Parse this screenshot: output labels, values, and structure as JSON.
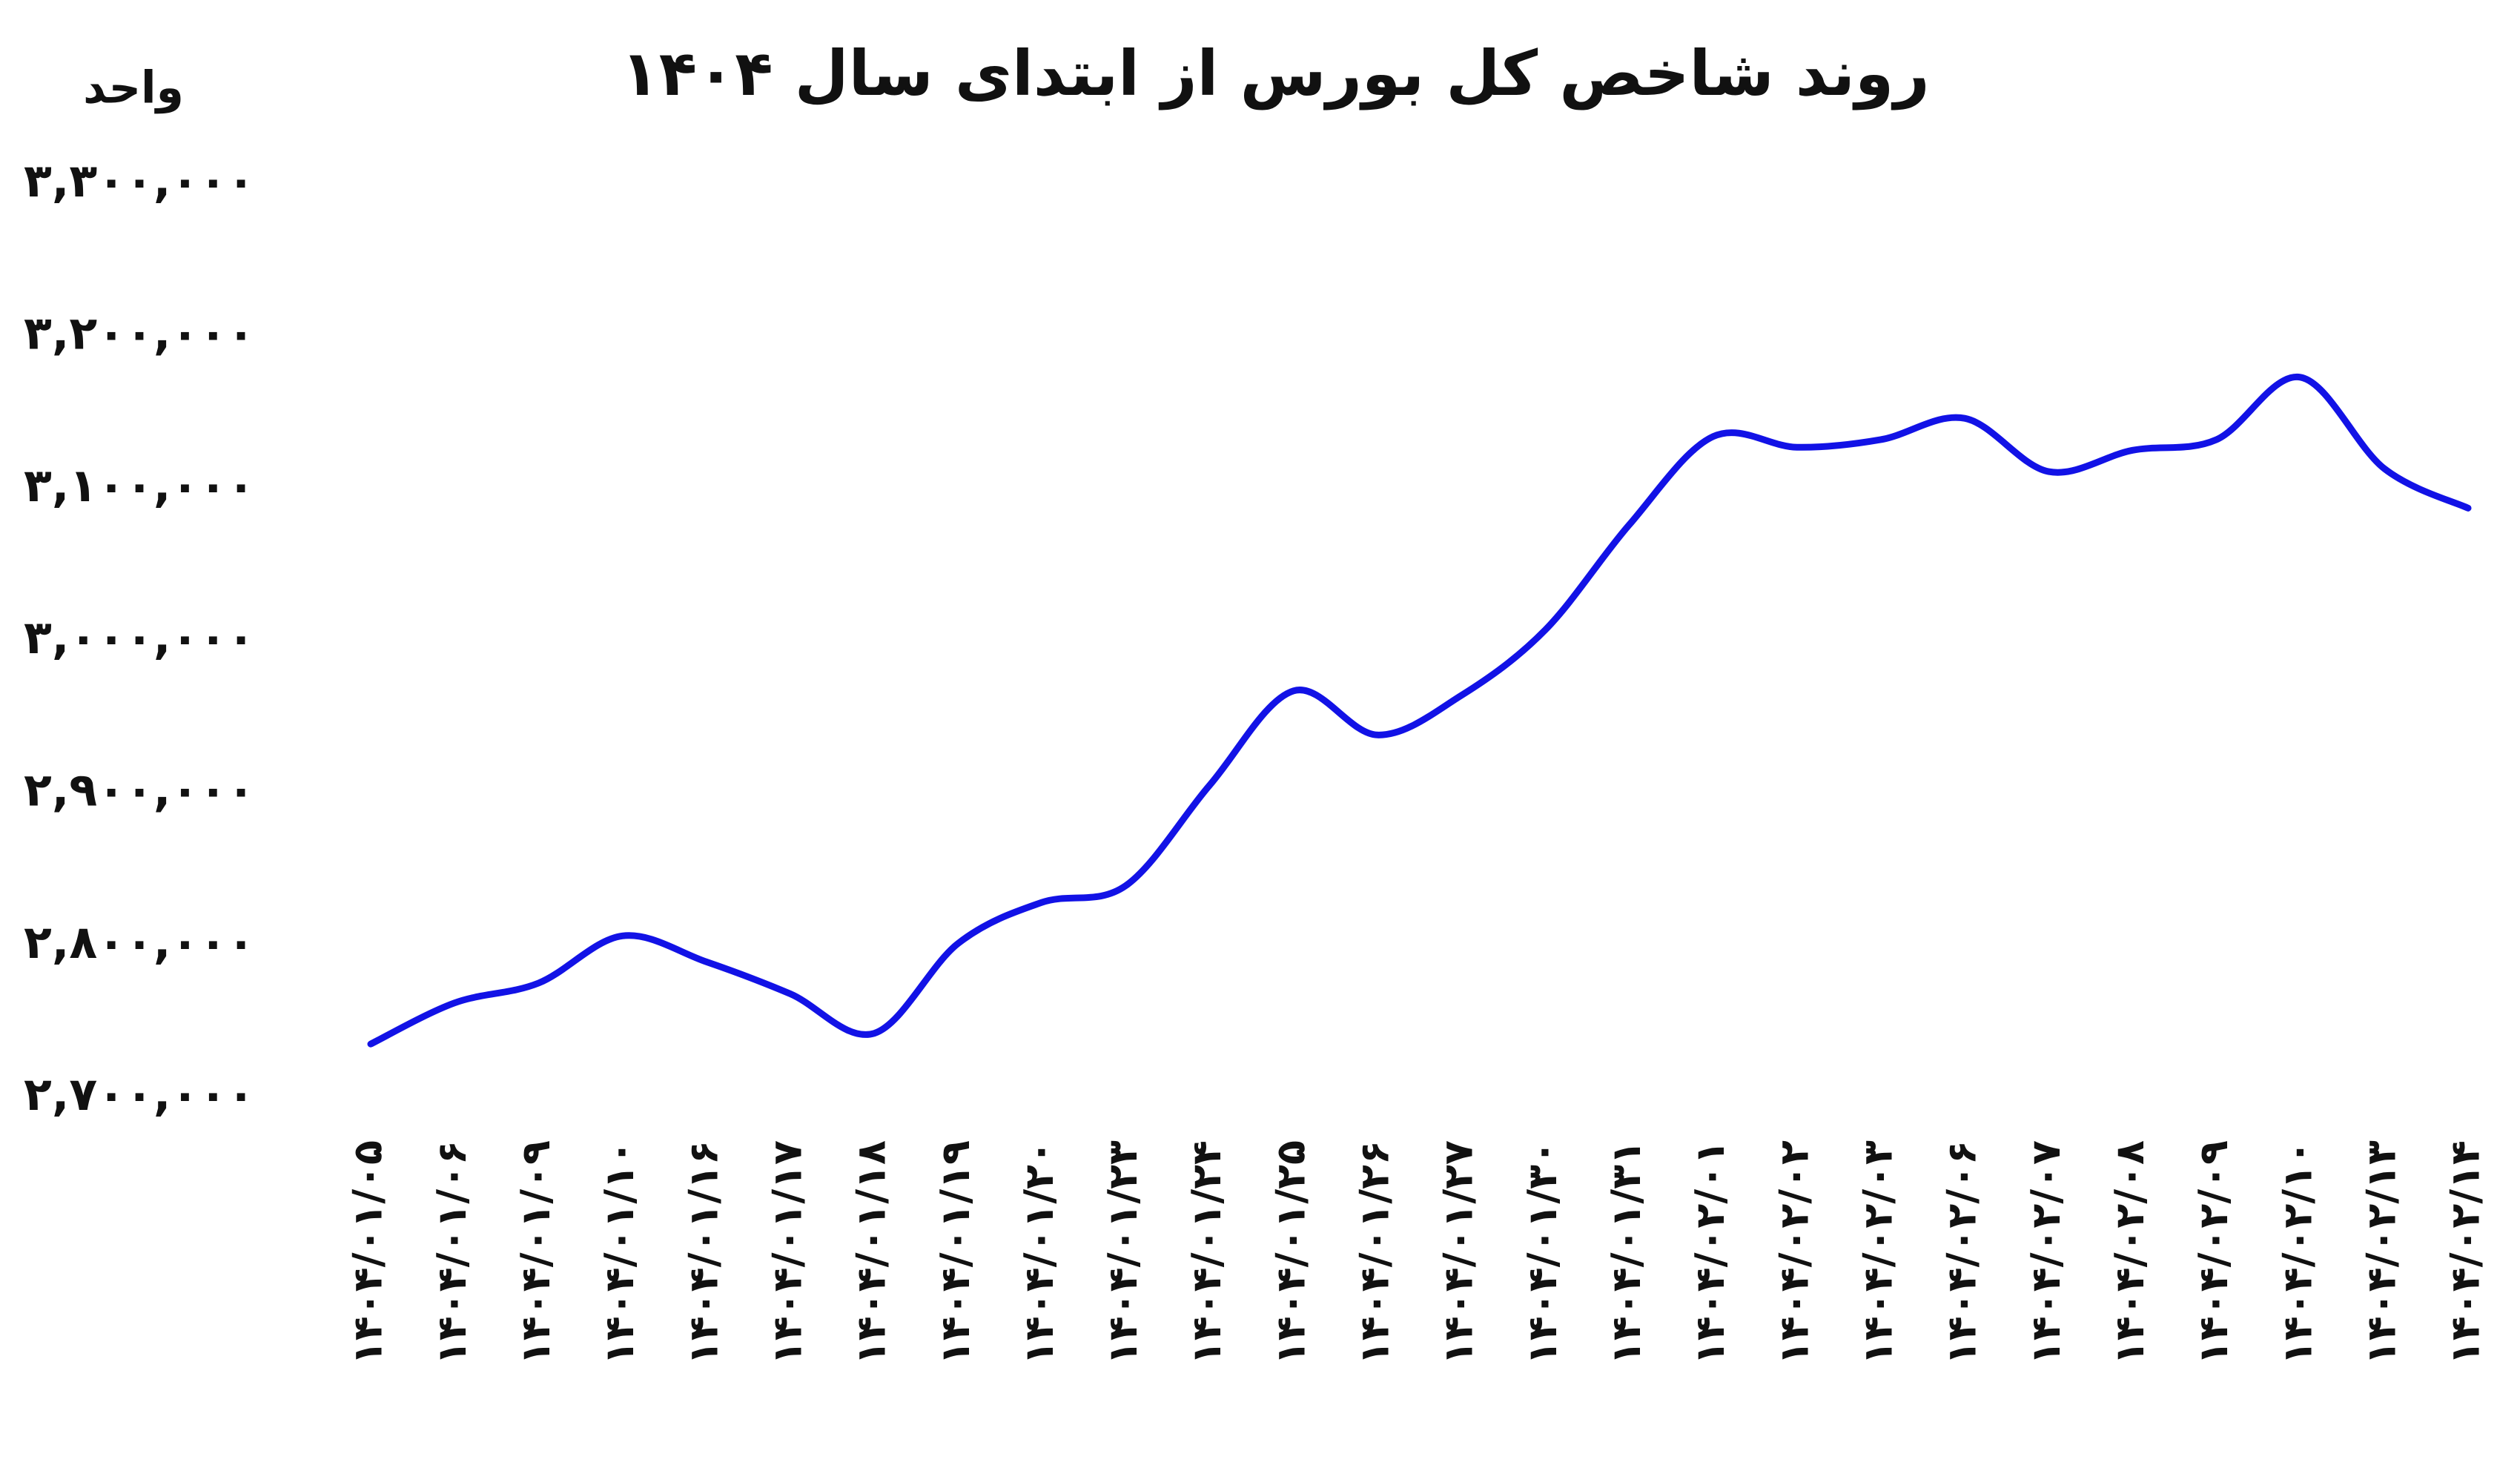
{
  "chart_data": {
    "type": "line",
    "title": "روند شاخص کل بورس از ابتدای سال ۱۴۰۴",
    "y_axis_label": "واحد",
    "categories": [
      "۱۴۰۴/۰۱/۰۵",
      "۱۴۰۴/۰۱/۰۶",
      "۱۴۰۴/۰۱/۰۹",
      "۱۴۰۴/۰۱/۱۰",
      "۱۴۰۴/۰۱/۱۶",
      "۱۴۰۴/۰۱/۱۷",
      "۱۴۰۴/۰۱/۱۸",
      "۱۴۰۴/۰۱/۱۹",
      "۱۴۰۴/۰۱/۲۰",
      "۱۴۰۴/۰۱/۲۳",
      "۱۴۰۴/۰۱/۲۴",
      "۱۴۰۴/۰۱/۲۵",
      "۱۴۰۴/۰۱/۲۶",
      "۱۴۰۴/۰۱/۲۷",
      "۱۴۰۴/۰۱/۳۰",
      "۱۴۰۴/۰۱/۳۱",
      "۱۴۰۴/۰۲/۰۱",
      "۱۴۰۴/۰۲/۰۲",
      "۱۴۰۴/۰۲/۰۳",
      "۱۴۰۴/۰۲/۰۶",
      "۱۴۰۴/۰۲/۰۷",
      "۱۴۰۴/۰۲/۰۸",
      "۱۴۰۴/۰۲/۰۹",
      "۱۴۰۴/۰۲/۱۰",
      "۱۴۰۴/۰۲/۱۳",
      "۱۴۰۴/۰۲/۱۴"
    ],
    "series": [
      {
        "color": "#1212e6",
        "values": [
          2735000,
          2762000,
          2775000,
          2806000,
          2789000,
          2768000,
          2742000,
          2801000,
          2828000,
          2839000,
          2905000,
          2967000,
          2938000,
          2964000,
          3007000,
          3076000,
          3134000,
          3127000,
          3132000,
          3146000,
          3111000,
          3125000,
          3132000,
          3173000,
          3113000,
          3087000
        ]
      }
    ],
    "ylim": [
      2700000,
      3300000
    ],
    "yticks": [
      {
        "value": 2700000,
        "label": "۲,۷۰۰,۰۰۰"
      },
      {
        "value": 2800000,
        "label": "۲,۸۰۰,۰۰۰"
      },
      {
        "value": 2900000,
        "label": "۲,۹۰۰,۰۰۰"
      },
      {
        "value": 3000000,
        "label": "۳,۰۰۰,۰۰۰"
      },
      {
        "value": 3100000,
        "label": "۳,۱۰۰,۰۰۰"
      },
      {
        "value": 3200000,
        "label": "۳,۲۰۰,۰۰۰"
      },
      {
        "value": 3300000,
        "label": "۳,۳۰۰,۰۰۰"
      }
    ],
    "grid": false
  }
}
